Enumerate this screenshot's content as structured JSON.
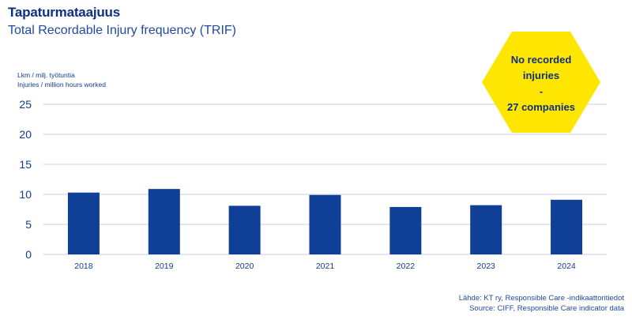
{
  "header": {
    "title": "Tapaturmataajuus",
    "subtitle": "Total Recordable Injury frequency (TRIF)"
  },
  "axis_label": {
    "line1": "Lkm / milj. työtuntia",
    "line2": "Injuries / million hours worked"
  },
  "badge": {
    "line1": "No recorded",
    "line2": "injuries",
    "line3": "-",
    "line4": "27 companies",
    "color": "#ffe600"
  },
  "source": {
    "line1": "Lähde: KT ry, Responsible Care -indikaattoritiedot",
    "line2": "Source: CIFF, Responsible Care indicator data"
  },
  "colors": {
    "bar": "#0f3f96",
    "axis_text": "#123c91",
    "grid": "#c9cde6"
  },
  "chart_data": {
    "type": "bar",
    "title": "Tapaturmataajuus",
    "subtitle": "Total Recordable Injury frequency (TRIF)",
    "ylabel": "Lkm / milj. työtuntia / Injuries / million hours worked",
    "xlabel": "",
    "categories": [
      "2018",
      "2019",
      "2020",
      "2021",
      "2022",
      "2023",
      "2024"
    ],
    "values": [
      10.3,
      10.9,
      8.1,
      9.9,
      7.9,
      8.2,
      9.1
    ],
    "ylim": [
      0,
      25
    ],
    "yticks": [
      0,
      5,
      10,
      15,
      20,
      25
    ],
    "grid": true,
    "legend": "none"
  }
}
